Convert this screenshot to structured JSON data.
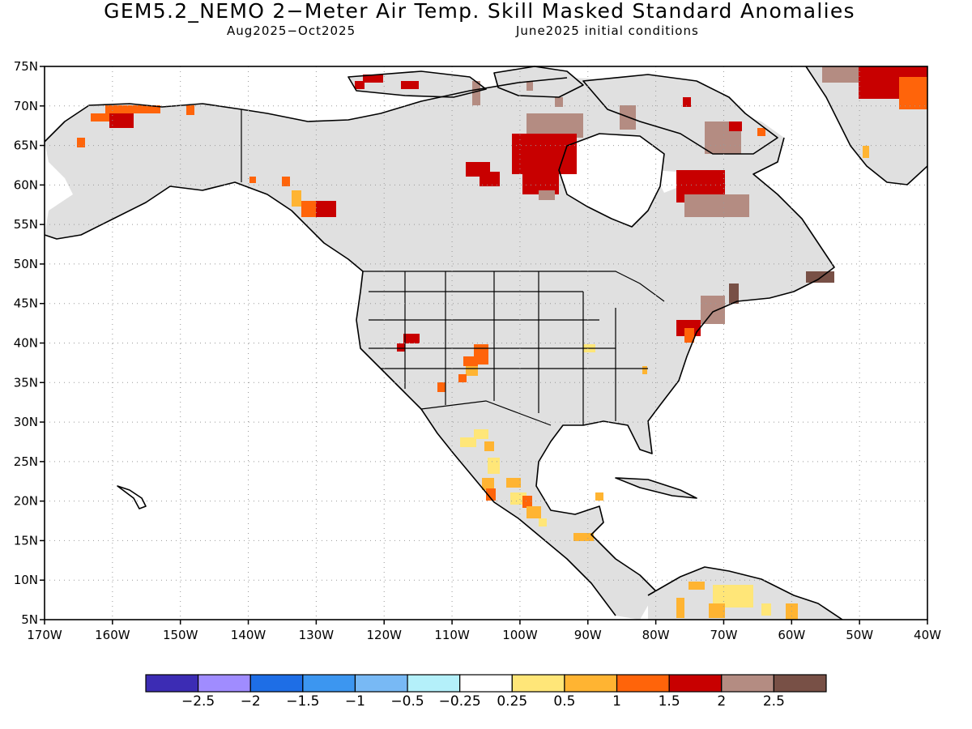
{
  "title": "GEM5.2_NEMO 2−Meter Air Temp. Skill Masked Standard Anomalies",
  "subtitle_left": "Aug2025−Oct2025",
  "subtitle_right": "June2025 initial conditions",
  "lat_labels": [
    "75N",
    "70N",
    "65N",
    "60N",
    "55N",
    "50N",
    "45N",
    "40N",
    "35N",
    "30N",
    "25N",
    "20N",
    "15N",
    "10N",
    "5N"
  ],
  "lon_labels": [
    "170W",
    "160W",
    "150W",
    "140W",
    "130W",
    "120W",
    "110W",
    "100W",
    "90W",
    "80W",
    "70W",
    "60W",
    "50W",
    "40W"
  ],
  "colorbar": {
    "colors": [
      "#3c2cb4",
      "#a08cff",
      "#1e6ee6",
      "#3c96f0",
      "#78b9f5",
      "#b4f0fa",
      "#ffffff",
      "#ffe678",
      "#ffb432",
      "#ff640a",
      "#c80000",
      "#b48c82",
      "#785046"
    ],
    "labels": [
      "−2.5",
      "−2",
      "−1.5",
      "−1",
      "−0.5",
      "−0.25",
      "0.25",
      "0.5",
      "1",
      "1.5",
      "2",
      "2.5"
    ]
  },
  "legend_colors": {
    "land_insignificant": "#e0e0e0",
    "coast": "#000000"
  }
}
